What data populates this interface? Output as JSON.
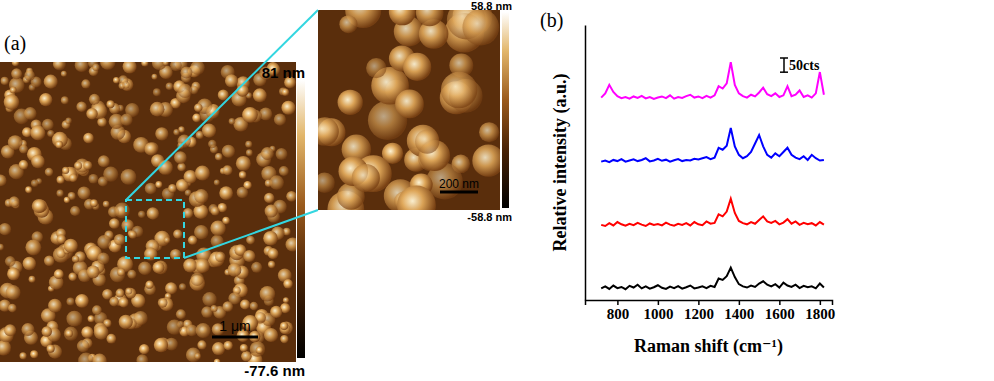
{
  "panel_a": {
    "panel_label": "(a)",
    "main_colorbar_max": "81 nm",
    "main_colorbar_min": "-77.6 nm",
    "main_scale_bar": "1 μm",
    "inset_colorbar_max": "58.8 nm",
    "inset_colorbar_min": "-58.8 nm",
    "inset_scale_bar": "200 nm"
  },
  "chart_data": {
    "type": "line",
    "panel_label": "(b)",
    "x_label": "Raman shift (cm⁻¹)",
    "y_label": "Relative intensity (a.u.)",
    "x": [
      720,
      740,
      760,
      780,
      800,
      820,
      840,
      860,
      880,
      900,
      920,
      940,
      960,
      980,
      1000,
      1020,
      1040,
      1060,
      1080,
      1100,
      1120,
      1140,
      1160,
      1180,
      1200,
      1220,
      1240,
      1260,
      1280,
      1300,
      1320,
      1340,
      1360,
      1380,
      1400,
      1420,
      1440,
      1460,
      1480,
      1500,
      1520,
      1540,
      1560,
      1580,
      1600,
      1620,
      1640,
      1660,
      1680,
      1700,
      1720,
      1740,
      1760,
      1780,
      1800,
      1820
    ],
    "series": [
      {
        "color": "#ff00ff",
        "values": [
          714,
          729,
          759,
          734,
          719,
          712,
          716,
          710,
          718,
          713,
          720,
          711,
          716,
          709,
          714,
          718,
          712,
          722,
          710,
          716,
          713,
          719,
          724,
          714,
          718,
          712,
          720,
          714,
          722,
          754,
          746,
          764,
          839,
          759,
          729,
          719,
          714,
          724,
          718,
          732,
          749,
          726,
          719,
          729,
          716,
          722,
          754,
          719,
          724,
          739,
          716,
          722,
          714,
          729,
          804,
          724
        ]
      },
      {
        "color": "#0000ff",
        "values": [
          488,
          492,
          486,
          494,
          490,
          497,
          488,
          492,
          496,
          490,
          494,
          500,
          489,
          492,
          498,
          491,
          495,
          488,
          493,
          497,
          490,
          494,
          492,
          498,
          496,
          500,
          504,
          497,
          502,
          537,
          530,
          544,
          607,
          542,
          512,
          500,
          507,
          522,
          552,
          582,
          542,
          512,
          502,
          517,
          507,
          522,
          537,
          512,
          502,
          497,
          507,
          494,
          512,
          500,
          492,
          494
        ]
      },
      {
        "color": "#ff0000",
        "values": [
          265,
          261,
          271,
          263,
          275,
          267,
          262,
          269,
          264,
          272,
          266,
          261,
          270,
          265,
          268,
          263,
          273,
          266,
          262,
          269,
          265,
          271,
          263,
          275,
          267,
          264,
          277,
          269,
          272,
          302,
          295,
          312,
          357,
          307,
          279,
          271,
          267,
          275,
          269,
          282,
          295,
          277,
          272,
          279,
          267,
          273,
          285,
          269,
          277,
          265,
          272,
          267,
          271,
          263,
          275,
          266
        ]
      },
      {
        "color": "#000000",
        "values": [
          41,
          48,
          39,
          51,
          42,
          46,
          38,
          50,
          44,
          54,
          41,
          48,
          40,
          45,
          52,
          43,
          39,
          47,
          42,
          49,
          40,
          45,
          51,
          41,
          44,
          48,
          42,
          50,
          46,
          76,
          71,
          84,
          114,
          81,
          56,
          48,
          44,
          51,
          46,
          58,
          66,
          54,
          48,
          56,
          44,
          61,
          51,
          46,
          54,
          42,
          50,
          45,
          48,
          41,
          58,
          44
        ]
      }
    ],
    "xlim": [
      640,
      1860
    ],
    "xticks": [
      800,
      1000,
      1200,
      1400,
      1600,
      1800
    ],
    "ylim": [
      0,
      970
    ],
    "tick_labels": "x",
    "scale_bar": {
      "value": 50,
      "label": "50cts"
    }
  }
}
